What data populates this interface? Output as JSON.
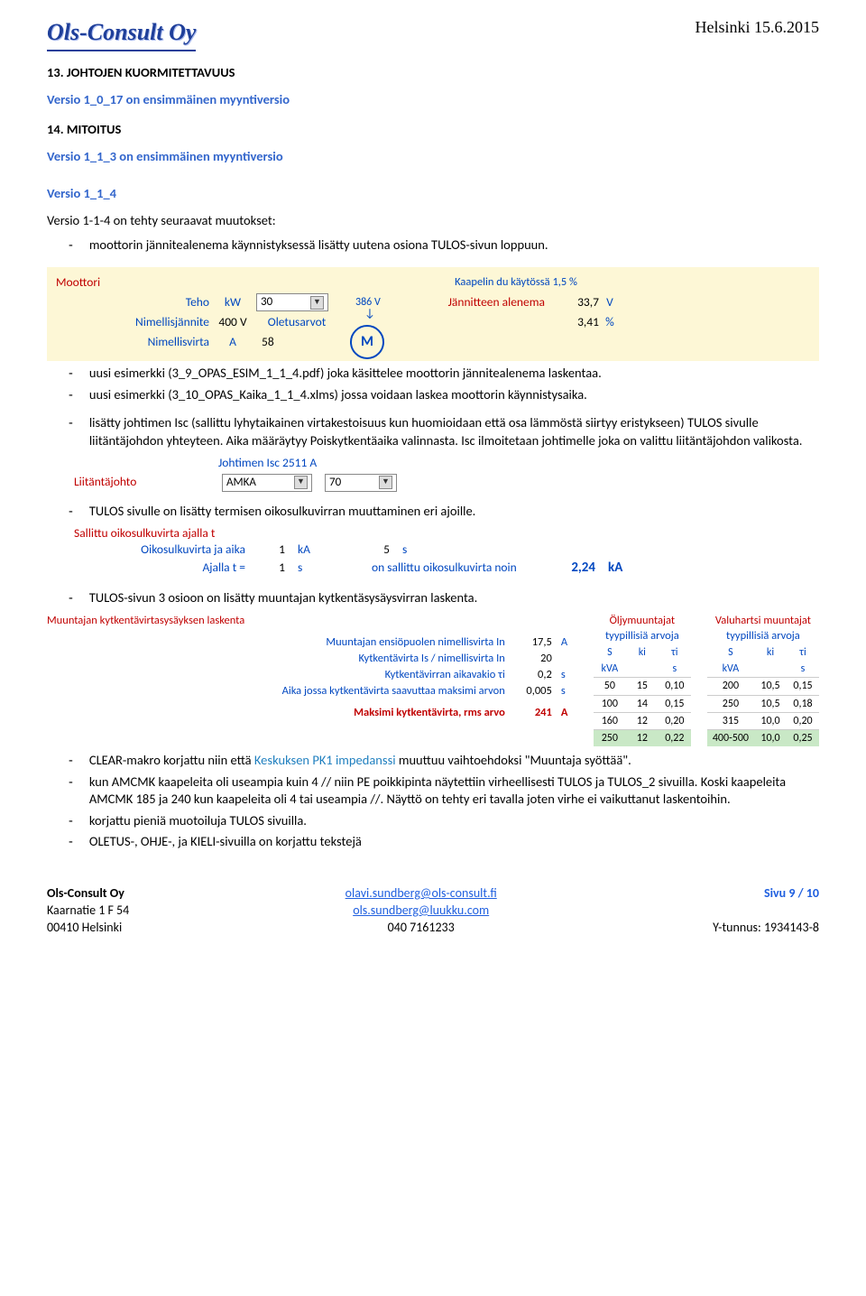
{
  "header": {
    "logo": "Ols-Consult Oy",
    "date": "Helsinki 15.6.2015"
  },
  "section13": {
    "title": "13. JOHTOJEN KUORMITETTAVUUS",
    "text": "Versio 1_0_17 on ensimmäinen myyntiversio"
  },
  "section14": {
    "title": "14. MITOITUS",
    "text": "Versio 1_1_3 on ensimmäinen myyntiversio",
    "subver": "Versio 1_1_4",
    "intro": "Versio 1-1-4 on tehty seuraavat muutokset:",
    "bullet1": "moottorin jännitealenema käynnistyksessä lisätty uutena osiona TULOS-sivun loppuun."
  },
  "motor": {
    "title": "Moottori",
    "kaapelin": "Kaapelin du käytössä 1,5 %",
    "teho_lbl": "Teho",
    "teho_unit": "kW",
    "teho_dropdown": "30",
    "v386": "386 V",
    "jann_lbl": "Jännitteen alenema",
    "jann_val": "33,7",
    "jann_unit": "V",
    "nimj_lbl": "Nimellisjännite",
    "nimj_val": "400 V",
    "oletus": "Oletusarvot",
    "pct_val": "3,41",
    "pct_unit": "%",
    "nimv_lbl": "Nimellisvirta",
    "nimv_unit": "A",
    "nimv_val": "58",
    "M": "M"
  },
  "bullets_a": [
    "uusi esimerkki (3_9_OPAS_ESIM_1_1_4.pdf) joka käsittelee moottorin jännitealenema laskentaa.",
    "uusi esimerkki (3_10_OPAS_Kaika_1_1_4.xlms) jossa voidaan laskea moottorin käynnistysaika."
  ],
  "bullet_long": "lisätty johtimen Isc (sallittu lyhytaikainen virtakestoisuus kun huomioidaan että osa lämmöstä siirtyy eristykseen) TULOS sivulle liitäntäjohdon yhteyteen. Aika määräytyy Poiskytkentäaika valinnasta. Isc ilmoitetaan johtimelle joka on valittu liitäntäjohdon valikosta.",
  "liitanta": {
    "isc": "Johtimen Isc 2511 A",
    "lbl": "Liitäntäjohto",
    "d1": "AMKA",
    "d2": "70"
  },
  "bullet_tulos": "TULOS sivulle on lisätty termisen oikosulkuvirran muuttaminen eri ajoille.",
  "sallittu": {
    "title": "Sallittu oikosulkuvirta ajalla t",
    "r1_lbl": "Oikosulkuvirta ja aika",
    "r1_v1": "1",
    "r1_u1": "kA",
    "r1_v2": "5",
    "r1_u2": "s",
    "r2_lbl": "Ajalla t =",
    "r2_v1": "1",
    "r2_u1": "s",
    "r2_txt": "on sallittu oikosulkuvirta noin",
    "r2_res": "2,24",
    "r2_res_u": "kA"
  },
  "bullet_muuntaja": "TULOS-sivun 3 osioon on lisätty muuntajan kytkentäsysäysvirran laskenta.",
  "muuntaja": {
    "title": "Muuntajan kytkentävirtasysäyksen laskenta",
    "rows": [
      {
        "lbl": "Muuntajan ensiöpuolen nimellisvirta In",
        "val": "17,5",
        "unit": "A",
        "red": false
      },
      {
        "lbl": "Kytkentävirta Is / nimellisvirta In",
        "val": "20",
        "unit": "",
        "red": false
      },
      {
        "lbl": "Kytkentävirran aikavakio τi",
        "val": "0,2",
        "unit": "s",
        "red": false
      },
      {
        "lbl": "Aika jossa kytkentävirta saavuttaa maksimi arvon",
        "val": "0,005",
        "unit": "s",
        "red": false
      },
      {
        "lbl": "Maksimi kytkentävirta, rms arvo",
        "val": "241",
        "unit": "A",
        "red": true
      }
    ],
    "t1": {
      "title": "Öljymuuntajat",
      "sub": "tyypillisiä arvoja",
      "head": [
        "S",
        "ki",
        "τi"
      ],
      "head2": [
        "kVA",
        "",
        "s"
      ],
      "rows": [
        [
          "50",
          "15",
          "0,10"
        ],
        [
          "100",
          "14",
          "0,15"
        ],
        [
          "160",
          "12",
          "0,20"
        ],
        [
          "250",
          "12",
          "0,22"
        ]
      ]
    },
    "t2": {
      "title": "Valuhartsi muuntajat",
      "sub": "tyypillisiä arvoja",
      "head": [
        "S",
        "ki",
        "τi"
      ],
      "head2": [
        "kVA",
        "",
        "s"
      ],
      "rows": [
        [
          "200",
          "10,5",
          "0,15"
        ],
        [
          "250",
          "10,5",
          "0,18"
        ],
        [
          "315",
          "10,0",
          "0,20"
        ],
        [
          "400-500",
          "10,0",
          "0,25"
        ]
      ]
    }
  },
  "bullets_b": [
    {
      "pre": "CLEAR-makro korjattu niin että ",
      "blue": "Keskuksen PK1 impedanssi",
      "post": " muuttuu vaihtoehdoksi \"Muuntaja syöttää\"."
    },
    {
      "text": "kun AMCMK kaapeleita oli useampia kuin 4 // niin PE poikkipinta näytettiin virheellisesti TULOS ja TULOS_2 sivuilla. Koski kaapeleita AMCMK 185 ja 240 kun kaapeleita oli 4 tai useampia //. Näyttö on tehty eri tavalla joten virhe ei vaikuttanut laskentoihin."
    },
    {
      "text": "korjattu pieniä muotoiluja TULOS sivuilla."
    },
    {
      "text": "OLETUS-, OHJE-, ja KIELI-sivuilla on korjattu tekstejä"
    }
  ],
  "footer": {
    "c1": [
      "Ols-Consult Oy",
      "Kaarnatie 1 F 54",
      "00410 Helsinki"
    ],
    "c2": [
      "olavi.sundberg@ols-consult.fi",
      "ols.sundberg@luukku.com",
      "040 7161233"
    ],
    "c3_page": "Sivu 9 / 10",
    "c3_y": "Y-tunnus: 1934143-8"
  }
}
